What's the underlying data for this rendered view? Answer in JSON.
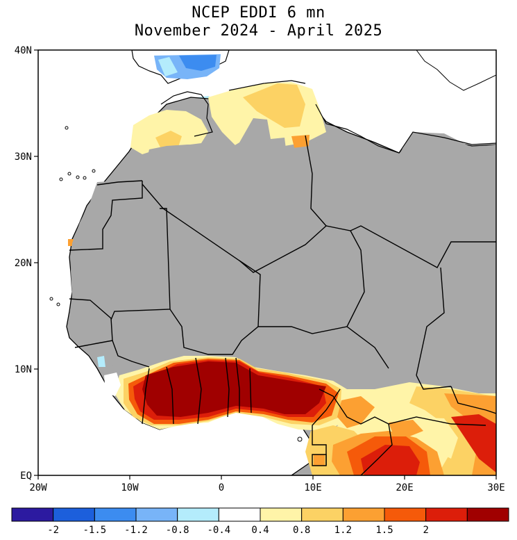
{
  "title": {
    "line1": "NCEP EDDI 6 mn",
    "line2": "November 2024 - April 2025"
  },
  "map": {
    "lat_labels": [
      "40N",
      "30N",
      "20N",
      "10N",
      "EQ"
    ],
    "lon_labels": [
      "20W",
      "10W",
      "0",
      "10E",
      "20E",
      "30E"
    ],
    "colors": {
      "missing_gray": "#a8a8a8",
      "ocean_white": "#ffffff",
      "coastline": "#000000"
    }
  },
  "colorbar": {
    "tick_labels": [
      "-2",
      "-1.5",
      "-1.2",
      "-0.8",
      "-0.4",
      "0.4",
      "0.8",
      "1.2",
      "1.5",
      "2"
    ],
    "colors": [
      "#2c1aa0",
      "#1c5fdc",
      "#3c8cf0",
      "#78b4f8",
      "#b4ecfc",
      "#ffffff",
      "#fff4a8",
      "#fcd264",
      "#fca032",
      "#f55a0a",
      "#dc1e0a",
      "#a00000"
    ]
  }
}
